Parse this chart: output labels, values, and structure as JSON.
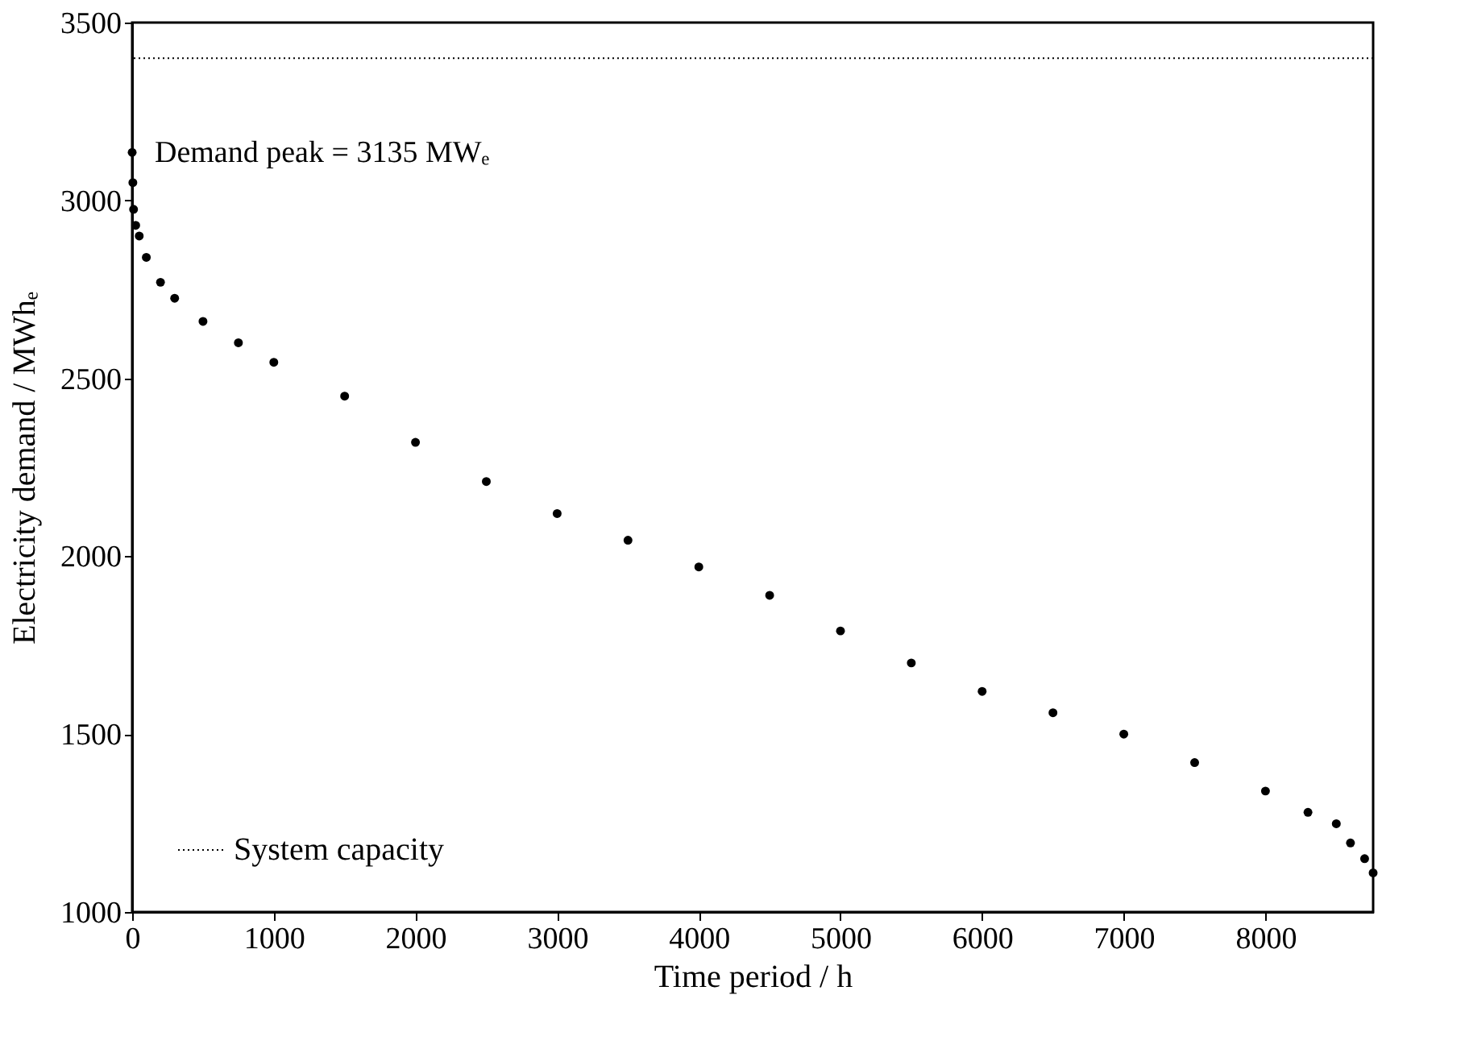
{
  "chart_data": {
    "type": "scatter",
    "xlabel": "Time period / h",
    "ylabel": "Electricity demand / MWhₑ",
    "x": [
      0,
      5,
      10,
      25,
      50,
      100,
      200,
      300,
      500,
      750,
      1000,
      1500,
      2000,
      2500,
      3000,
      3500,
      4000,
      4500,
      5000,
      5500,
      6000,
      6500,
      7000,
      7500,
      8000,
      8300,
      8500,
      8600,
      8700,
      8760
    ],
    "series": [
      {
        "color": "#000000",
        "values": [
          3135,
          3050,
          2975,
          2930,
          2900,
          2840,
          2770,
          2725,
          2660,
          2600,
          2545,
          2450,
          2320,
          2210,
          2120,
          2045,
          1970,
          1890,
          1790,
          1700,
          1620,
          1560,
          1500,
          1420,
          1340,
          1280,
          1248,
          1194,
          1150,
          1110
        ]
      }
    ],
    "xlim": [
      0,
      8760
    ],
    "xticks": [
      0,
      1000,
      2000,
      3000,
      4000,
      5000,
      6000,
      7000,
      8000
    ],
    "ylim": [
      1000,
      3500
    ],
    "yticks": [
      1000,
      1500,
      2000,
      2500,
      3000,
      3500
    ],
    "ref_lines": [
      {
        "axis": "y",
        "value": 3400,
        "label": "System capacity",
        "color": "#000000",
        "line_style": "dotted"
      }
    ],
    "annotations": [
      {
        "text": "Demand peak = 3135 MWₑ",
        "x": 0,
        "y": 3135
      }
    ],
    "legend": "bottom left",
    "marker": "circle",
    "grid": false
  }
}
